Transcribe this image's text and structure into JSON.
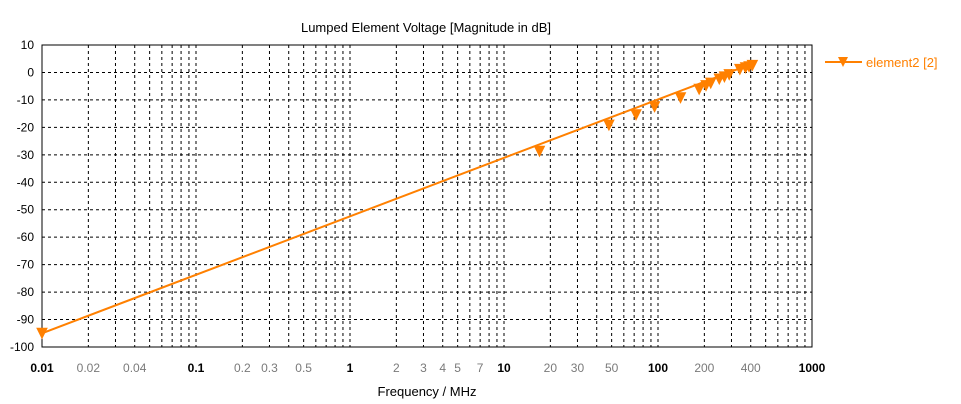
{
  "chart_data": {
    "type": "line",
    "title": "Lumped Element Voltage [Magnitude in dB]",
    "xlabel": "Frequency / MHz",
    "ylabel": "",
    "x_scale": "log",
    "xlim": [
      0.01,
      1000
    ],
    "ylim": [
      -100,
      10
    ],
    "grid": true,
    "legend_position": "right",
    "x_ticks": [
      {
        "value": 0.01,
        "label": "0.01",
        "major": true
      },
      {
        "value": 0.02,
        "label": "0.02",
        "major": false
      },
      {
        "value": 0.04,
        "label": "0.04",
        "major": false
      },
      {
        "value": 0.1,
        "label": "0.1",
        "major": true
      },
      {
        "value": 0.2,
        "label": "0.2",
        "major": false
      },
      {
        "value": 0.3,
        "label": "0.3",
        "major": false
      },
      {
        "value": 0.5,
        "label": "0.5",
        "major": false
      },
      {
        "value": 1,
        "label": "1",
        "major": true
      },
      {
        "value": 2,
        "label": "2",
        "major": false
      },
      {
        "value": 3,
        "label": "3",
        "major": false
      },
      {
        "value": 4,
        "label": "4",
        "major": false
      },
      {
        "value": 5,
        "label": "5",
        "major": false
      },
      {
        "value": 7,
        "label": "7",
        "major": false
      },
      {
        "value": 10,
        "label": "10",
        "major": true
      },
      {
        "value": 20,
        "label": "20",
        "major": false
      },
      {
        "value": 30,
        "label": "30",
        "major": false
      },
      {
        "value": 50,
        "label": "50",
        "major": false
      },
      {
        "value": 100,
        "label": "100",
        "major": true
      },
      {
        "value": 200,
        "label": "200",
        "major": false
      },
      {
        "value": 400,
        "label": "400",
        "major": false
      },
      {
        "value": 1000,
        "label": "1000",
        "major": true
      }
    ],
    "y_ticks": [
      10,
      0,
      -10,
      -20,
      -30,
      -40,
      -50,
      -60,
      -70,
      -80,
      -90,
      -100
    ],
    "series": [
      {
        "name": "element2 [2]",
        "color": "#ff8000",
        "marker": "triangle-down",
        "line_x": [
          0.01,
          400
        ],
        "line_y": [
          -95,
          3
        ],
        "marker_x": [
          0.01,
          17,
          48,
          72,
          95,
          140,
          185,
          205,
          220,
          250,
          270,
          290,
          340,
          370,
          390,
          410
        ],
        "marker_y": [
          -95,
          -28.7,
          -19.2,
          -15.4,
          -12.5,
          -9.2,
          -6.1,
          -4.8,
          -3.9,
          -2.4,
          -1.6,
          -0.8,
          1.1,
          1.7,
          2.1,
          2.6
        ]
      }
    ]
  }
}
